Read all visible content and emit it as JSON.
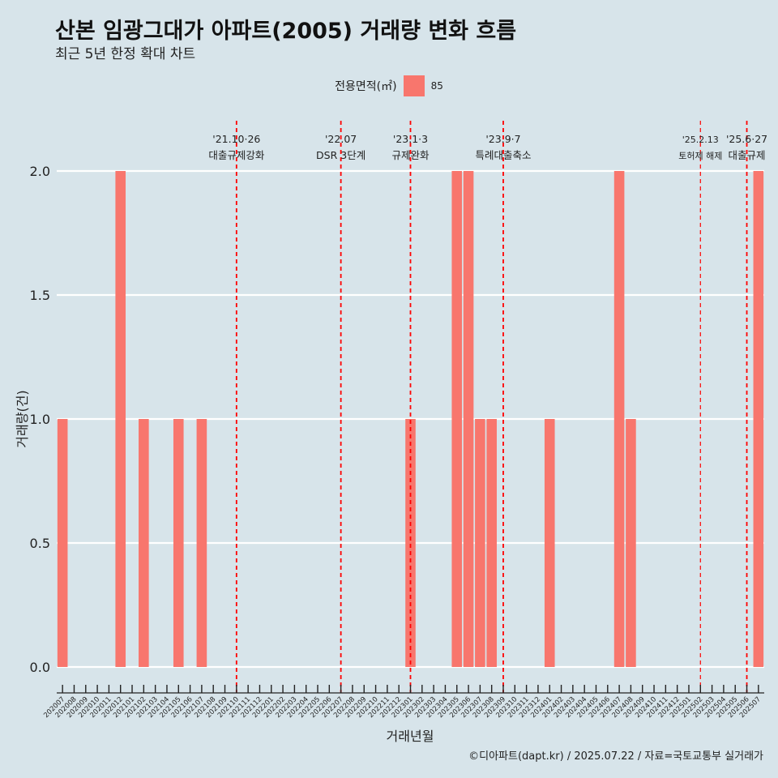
{
  "header": {
    "title": "산본 임광그대가 아파트(2005) 거래량 변화 흐름",
    "subtitle": "최근 5년 한정 확대 차트"
  },
  "legend": {
    "title": "전용면적(㎡)",
    "label": "85",
    "color": "#f8766d"
  },
  "caption": "©디아파트(dapt.kr) / 2025.07.22 / 자료=국토교통부 실거래가",
  "chart_data": {
    "type": "bar",
    "xlabel": "거래년월",
    "ylabel": "거래량(건)",
    "ylim": [
      0,
      2.0
    ],
    "yticks": [
      "0.0",
      "0.5",
      "1.0",
      "1.5",
      "2.0"
    ],
    "grid": true,
    "legend_position": "top",
    "categories": [
      "202007",
      "202008",
      "202009",
      "202010",
      "202011",
      "202012",
      "202101",
      "202102",
      "202103",
      "202104",
      "202105",
      "202106",
      "202107",
      "202108",
      "202109",
      "202110",
      "202111",
      "202112",
      "202201",
      "202202",
      "202203",
      "202204",
      "202205",
      "202206",
      "202207",
      "202208",
      "202209",
      "202210",
      "202211",
      "202212",
      "202301",
      "202302",
      "202303",
      "202304",
      "202305",
      "202306",
      "202307",
      "202308",
      "202309",
      "202310",
      "202311",
      "202312",
      "202401",
      "202402",
      "202403",
      "202404",
      "202405",
      "202406",
      "202407",
      "202408",
      "202409",
      "202410",
      "202411",
      "202412",
      "202501",
      "202502",
      "202503",
      "202504",
      "202505",
      "202506",
      "202507"
    ],
    "series": [
      {
        "name": "85",
        "color": "#f8766d",
        "values": [
          1,
          0,
          0,
          0,
          0,
          2,
          0,
          1,
          0,
          0,
          1,
          0,
          1,
          0,
          0,
          0,
          0,
          0,
          0,
          0,
          0,
          0,
          0,
          0,
          0,
          0,
          0,
          0,
          0,
          0,
          1,
          0,
          0,
          0,
          2,
          2,
          1,
          1,
          0,
          0,
          0,
          0,
          1,
          0,
          0,
          0,
          0,
          0,
          2,
          1,
          0,
          0,
          0,
          0,
          0,
          0,
          0,
          0,
          0,
          0,
          2
        ]
      }
    ],
    "annotations": [
      {
        "category": "202110",
        "date": "'21.10·26",
        "label": "대출규제강화"
      },
      {
        "category": "202207",
        "date": "'22.07",
        "label": "DSR 3단계"
      },
      {
        "category": "202301",
        "date": "'23.1·3",
        "label": "규제완화"
      },
      {
        "category": "202309",
        "date": "'23.9·7",
        "label": "특례대출축소"
      },
      {
        "category": "202502",
        "date": "'25.2.13",
        "label": "토허제 해제"
      },
      {
        "category": "202506",
        "date": "'25.6·27",
        "label": "대출규제"
      }
    ],
    "annotation_color": "#ff0000"
  }
}
